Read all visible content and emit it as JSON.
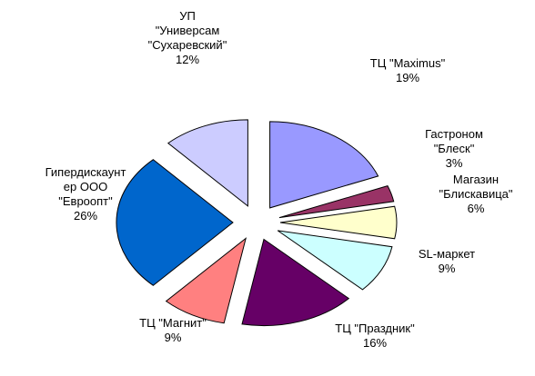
{
  "chart_data": {
    "type": "pie",
    "exploded": true,
    "legend": "none",
    "slices": [
      {
        "label": [
          "ТЦ \"Maximus\""
        ],
        "value": 19,
        "pct_label": "19%",
        "color": "#9999FF"
      },
      {
        "label": [
          "Гастроном",
          "\"Блеск\""
        ],
        "value": 3,
        "pct_label": "3%",
        "color": "#993366"
      },
      {
        "label": [
          "Магазин",
          "\"Блискавица\""
        ],
        "value": 6,
        "pct_label": "6%",
        "color": "#FFFFCC"
      },
      {
        "label": [
          "SL-маркет"
        ],
        "value": 9,
        "pct_label": "9%",
        "color": "#CCFFFF"
      },
      {
        "label": [
          "ТЦ \"Праздник\""
        ],
        "value": 16,
        "pct_label": "16%",
        "color": "#660066"
      },
      {
        "label": [
          "ТЦ \"Магнит\""
        ],
        "value": 9,
        "pct_label": "9%",
        "color": "#FF8080"
      },
      {
        "label": [
          "Гипердискаунт",
          "ер ООО",
          "\"Евроопт\""
        ],
        "value": 26,
        "pct_label": "26%",
        "color": "#0066CC"
      },
      {
        "label": [
          "УП",
          "\"Универсам",
          "\"Сухаревский\""
        ],
        "value": 12,
        "pct_label": "12%",
        "color": "#CCCCFF"
      }
    ]
  }
}
